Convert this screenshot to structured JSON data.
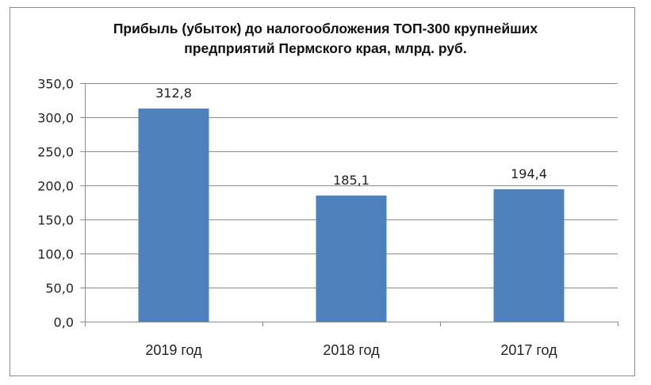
{
  "chart_data": {
    "type": "bar",
    "title": "Прибыль (убыток) до налогообложения ТОП-300 крупнейших предприятий Пермского края, млрд. руб.",
    "title_lines": [
      "Прибыль (убыток) до налогообложения ТОП-300 крупнейших",
      "предприятий Пермского края, млрд. руб."
    ],
    "categories": [
      "2019 год",
      "2018 год",
      "2017 год"
    ],
    "values": [
      312.8,
      185.1,
      194.4
    ],
    "value_labels": [
      "312,8",
      "185,1",
      "194,4"
    ],
    "xlabel": "",
    "ylabel": "",
    "ylim": [
      0,
      350
    ],
    "yticks": [
      0,
      50,
      100,
      150,
      200,
      250,
      300,
      350
    ],
    "ytick_labels": [
      "0,0",
      "50,0",
      "100,0",
      "150,0",
      "200,0",
      "250,0",
      "300,0",
      "350,0"
    ],
    "grid": true,
    "legend": "none",
    "bar_color": "#4f81bd"
  }
}
